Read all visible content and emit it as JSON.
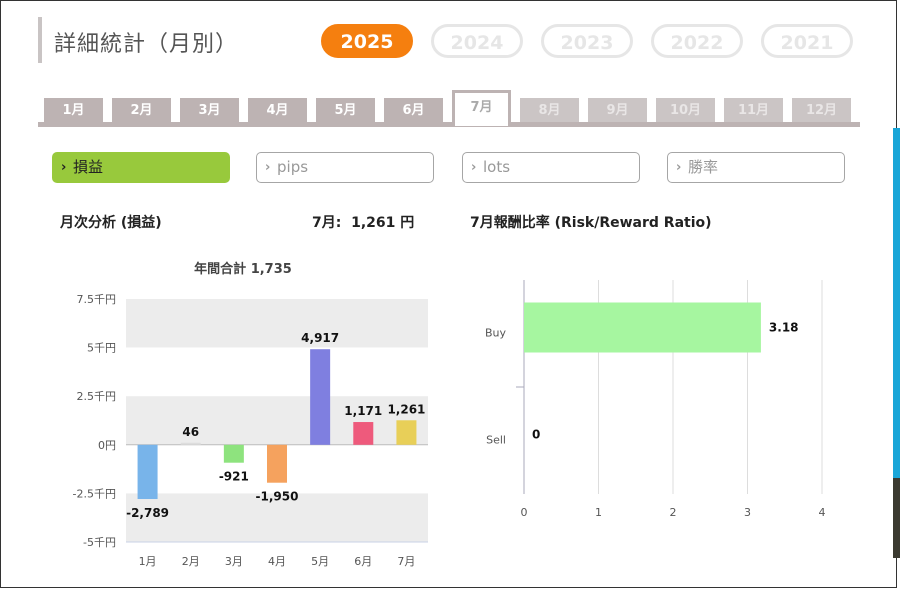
{
  "page": {
    "title": "詳細統計（月別）",
    "years": [
      {
        "label": "2025",
        "active": true
      },
      {
        "label": "2024",
        "active": false
      },
      {
        "label": "2023",
        "active": false
      },
      {
        "label": "2022",
        "active": false
      },
      {
        "label": "2021",
        "active": false
      }
    ],
    "months": [
      {
        "label": "1月",
        "state": "done"
      },
      {
        "label": "2月",
        "state": "done"
      },
      {
        "label": "3月",
        "state": "done"
      },
      {
        "label": "4月",
        "state": "done"
      },
      {
        "label": "5月",
        "state": "done"
      },
      {
        "label": "6月",
        "state": "done"
      },
      {
        "label": "7月",
        "state": "active"
      },
      {
        "label": "8月",
        "state": "future"
      },
      {
        "label": "9月",
        "state": "future"
      },
      {
        "label": "10月",
        "state": "future"
      },
      {
        "label": "11月",
        "state": "future"
      },
      {
        "label": "12月",
        "state": "future"
      }
    ],
    "metrics": [
      {
        "label": "損益",
        "active": true
      },
      {
        "label": "pips",
        "active": false
      },
      {
        "label": "lots",
        "active": false
      },
      {
        "label": "勝率",
        "active": false
      }
    ],
    "monthly_heading": "月次分析 (損益)",
    "monthly_value": "7月:  1,261 円",
    "ratio_heading": "7月報酬比率 (Risk/Reward Ratio)",
    "colors": {
      "accent": "#f57f0f",
      "active_metric": "#98c93c"
    }
  },
  "chart_data": [
    {
      "type": "bar",
      "title": "年間合計 1,735",
      "categories": [
        "1月",
        "2月",
        "3月",
        "4月",
        "5月",
        "6月",
        "7月"
      ],
      "values": [
        -2789,
        46,
        -921,
        -1950,
        4917,
        1171,
        1261
      ],
      "value_labels": [
        "-2,789",
        "46",
        "-921",
        "-1,950",
        "4,917",
        "1,171",
        "1,261"
      ],
      "colors": [
        "#78b4ea",
        "#dddddd",
        "#8ee37e",
        "#f5a25e",
        "#7f7fe0",
        "#ee5a7c",
        "#e8cf58"
      ],
      "yticks": [
        "7.5千円",
        "5千円",
        "2.5千円",
        "0円",
        "-2.5千円",
        "-5千円"
      ],
      "ylim": [
        -5000,
        7500
      ],
      "grid": true
    },
    {
      "type": "bar",
      "orientation": "horizontal",
      "categories": [
        "Buy",
        "Sell"
      ],
      "values": [
        3.18,
        0
      ],
      "value_labels": [
        "3.18",
        "0"
      ],
      "color": "#a6f6a0",
      "xticks": [
        "0",
        "1",
        "2",
        "3",
        "4"
      ],
      "xlim": [
        0,
        4
      ],
      "grid": true
    }
  ]
}
